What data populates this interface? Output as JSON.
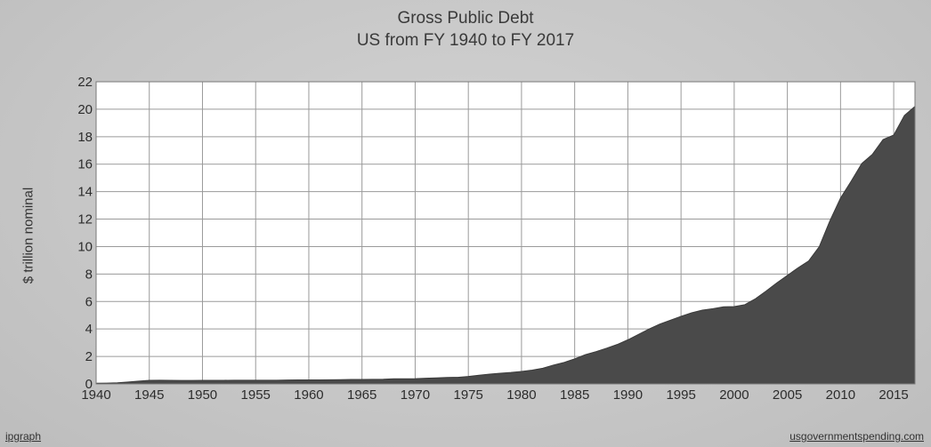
{
  "chart_data": {
    "type": "area",
    "title": "Gross Public Debt",
    "subtitle": "US from FY 1940 to FY 2017",
    "ylabel": "$ trillion nominal",
    "xlabel": "",
    "xlim": [
      1940,
      2017
    ],
    "ylim": [
      0,
      22
    ],
    "x_ticks": [
      "1940",
      "1945",
      "1950",
      "1955",
      "1960",
      "1965",
      "1970",
      "1975",
      "1980",
      "1985",
      "1990",
      "1995",
      "2000",
      "2005",
      "2010",
      "2015"
    ],
    "y_ticks": [
      "0",
      "2",
      "4",
      "6",
      "8",
      "10",
      "12",
      "14",
      "16",
      "18",
      "20",
      "22"
    ],
    "grid": true,
    "colors": {
      "area": "#4a4a4a",
      "plot_bg": "#ffffff",
      "grid": "#9a9a9a"
    },
    "series": [
      {
        "x": [
          1940,
          1941,
          1942,
          1943,
          1944,
          1945,
          1946,
          1947,
          1948,
          1949,
          1950,
          1951,
          1952,
          1953,
          1954,
          1955,
          1956,
          1957,
          1958,
          1959,
          1960,
          1961,
          1962,
          1963,
          1964,
          1965,
          1966,
          1967,
          1968,
          1969,
          1970,
          1971,
          1972,
          1973,
          1974,
          1975,
          1976,
          1977,
          1978,
          1979,
          1980,
          1981,
          1982,
          1983,
          1984,
          1985,
          1986,
          1987,
          1988,
          1989,
          1990,
          1991,
          1992,
          1993,
          1994,
          1995,
          1996,
          1997,
          1998,
          1999,
          2000,
          2001,
          2002,
          2003,
          2004,
          2005,
          2006,
          2007,
          2008,
          2009,
          2010,
          2011,
          2012,
          2013,
          2014,
          2015,
          2016,
          2017
        ],
        "values": [
          0.05,
          0.06,
          0.08,
          0.14,
          0.2,
          0.26,
          0.27,
          0.26,
          0.25,
          0.25,
          0.26,
          0.26,
          0.26,
          0.27,
          0.27,
          0.27,
          0.27,
          0.27,
          0.28,
          0.29,
          0.29,
          0.29,
          0.3,
          0.31,
          0.32,
          0.32,
          0.33,
          0.34,
          0.37,
          0.37,
          0.38,
          0.41,
          0.44,
          0.47,
          0.48,
          0.54,
          0.63,
          0.71,
          0.78,
          0.83,
          0.91,
          1.0,
          1.14,
          1.37,
          1.56,
          1.82,
          2.13,
          2.35,
          2.6,
          2.87,
          3.21,
          3.6,
          4.0,
          4.35,
          4.64,
          4.92,
          5.18,
          5.37,
          5.48,
          5.61,
          5.63,
          5.77,
          6.2,
          6.76,
          7.35,
          7.9,
          8.45,
          8.95,
          9.99,
          11.88,
          13.53,
          14.76,
          16.05,
          16.72,
          17.79,
          18.12,
          19.54,
          20.21
        ]
      }
    ]
  },
  "footer": {
    "left": "ipgraph",
    "right": "usgovernmentspending.com"
  }
}
